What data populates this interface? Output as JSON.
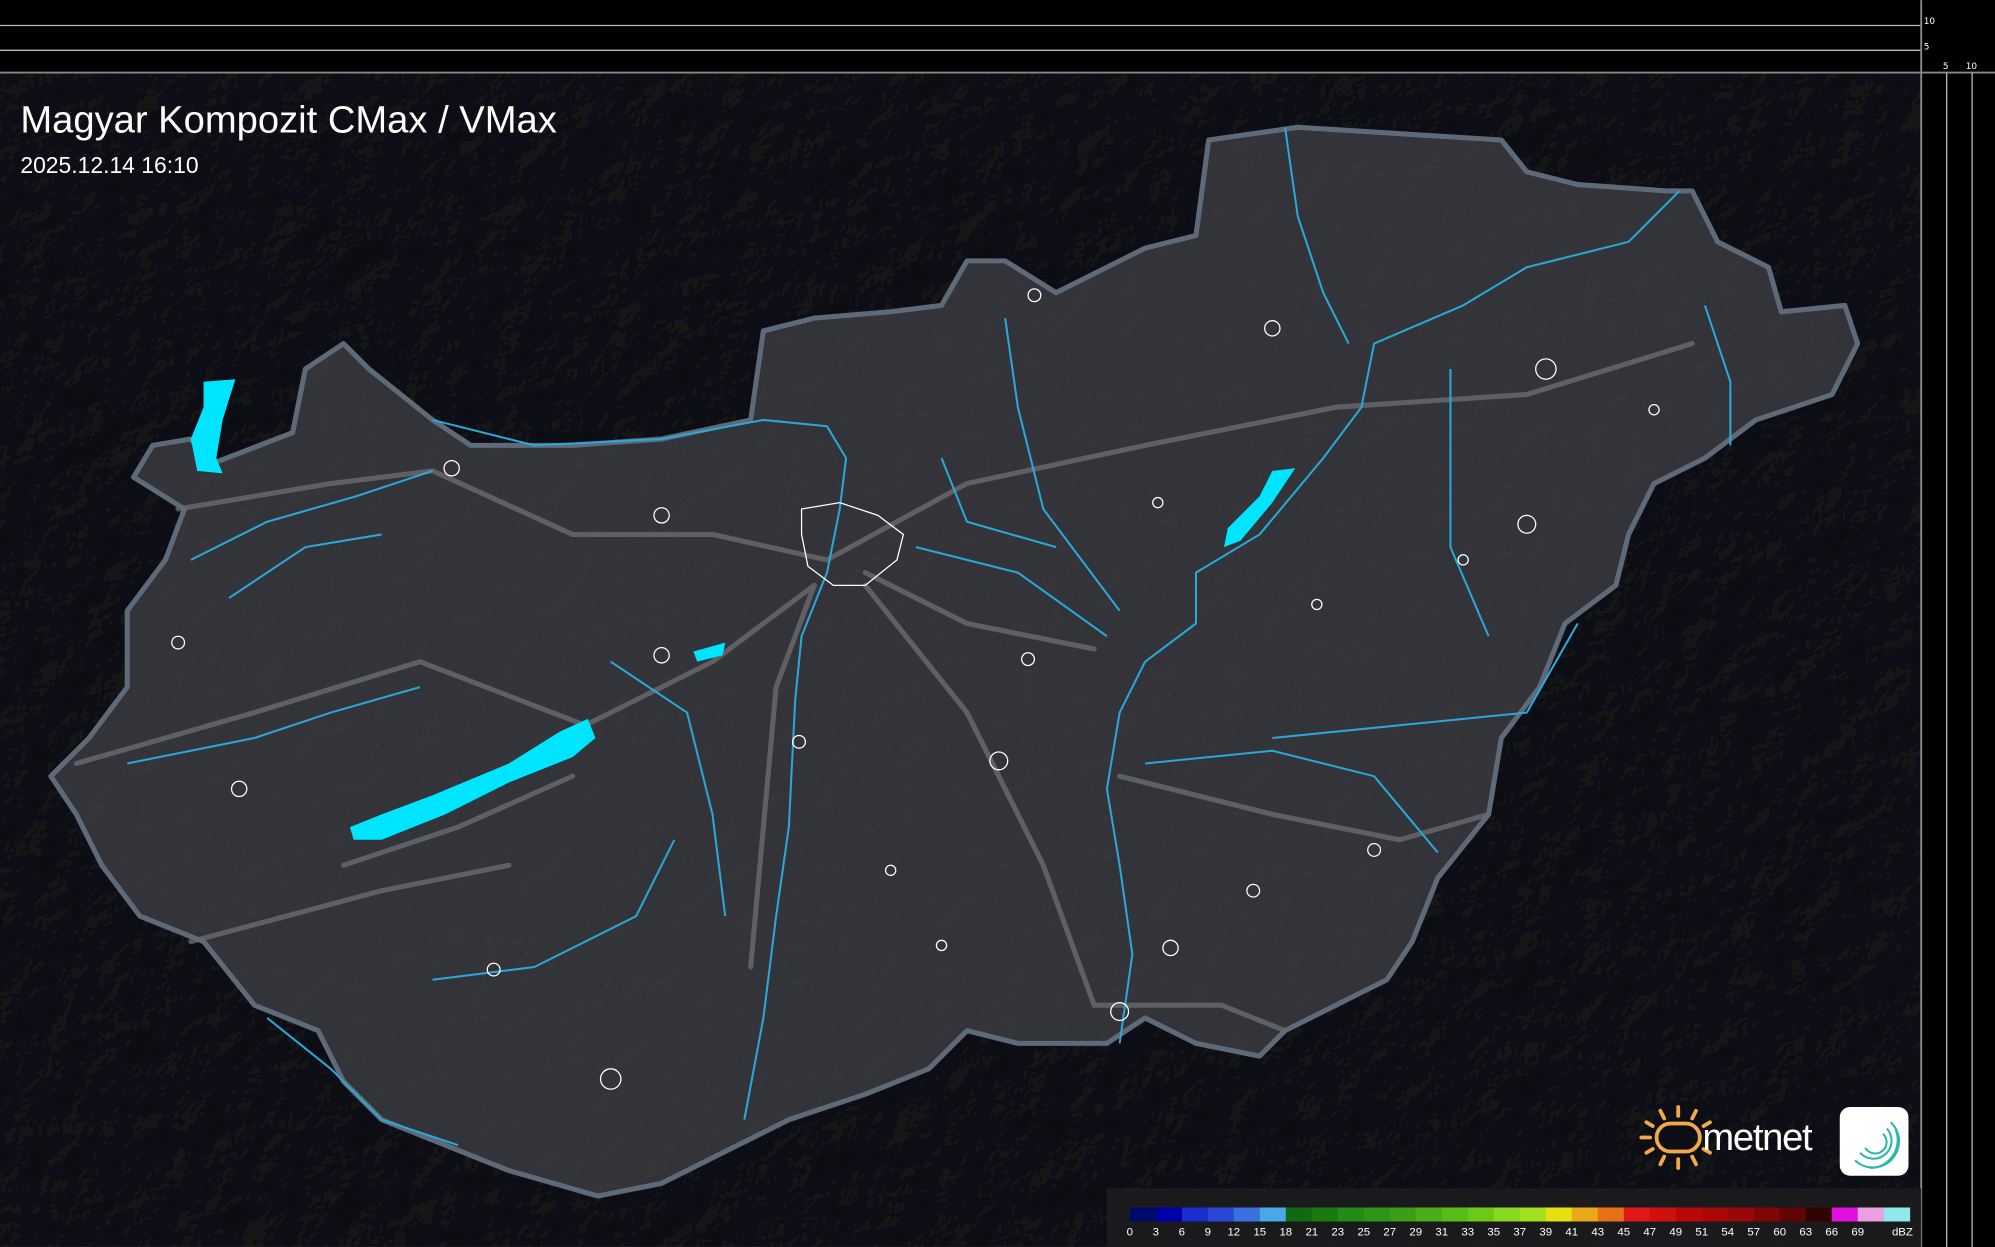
{
  "header": {
    "title": "Magyar Kompozit CMax / VMax",
    "timestamp": "2025.12.14 16:10"
  },
  "scale_ticks": {
    "vertical": [
      "10",
      "5"
    ],
    "horizontal": [
      "5",
      "10"
    ]
  },
  "colors": {
    "background": "#2b2b2e",
    "country_fill": "#3b3b41",
    "border": "#8a9aa8",
    "water": "#00e5ff",
    "river": "#2aa8d8",
    "road": "#6a6a70"
  },
  "logos": {
    "metnet": "metnet",
    "swirl": "swirl-logo-icon"
  },
  "legend": {
    "unit": "dBZ",
    "labels": [
      "0",
      "3",
      "6",
      "9",
      "12",
      "15",
      "18",
      "21",
      "23",
      "25",
      "27",
      "29",
      "31",
      "33",
      "35",
      "37",
      "39",
      "41",
      "43",
      "45",
      "47",
      "49",
      "51",
      "54",
      "57",
      "60",
      "63",
      "66",
      "69"
    ],
    "colors": [
      "#000a6a",
      "#0000a8",
      "#1a2ed0",
      "#2a48d8",
      "#3a70e0",
      "#48a8e8",
      "#0f6a10",
      "#1a7a10",
      "#248a18",
      "#2f9418",
      "#3a9e18",
      "#4aae18",
      "#5abc18",
      "#6ec818",
      "#88d820",
      "#a0e020",
      "#e6e010",
      "#e8a818",
      "#e87018",
      "#e01818",
      "#d01010",
      "#b80808",
      "#a80808",
      "#980808",
      "#800606",
      "#600404",
      "#300202",
      "#e010e0",
      "#e8a0e0",
      "#90e8e8"
    ]
  }
}
